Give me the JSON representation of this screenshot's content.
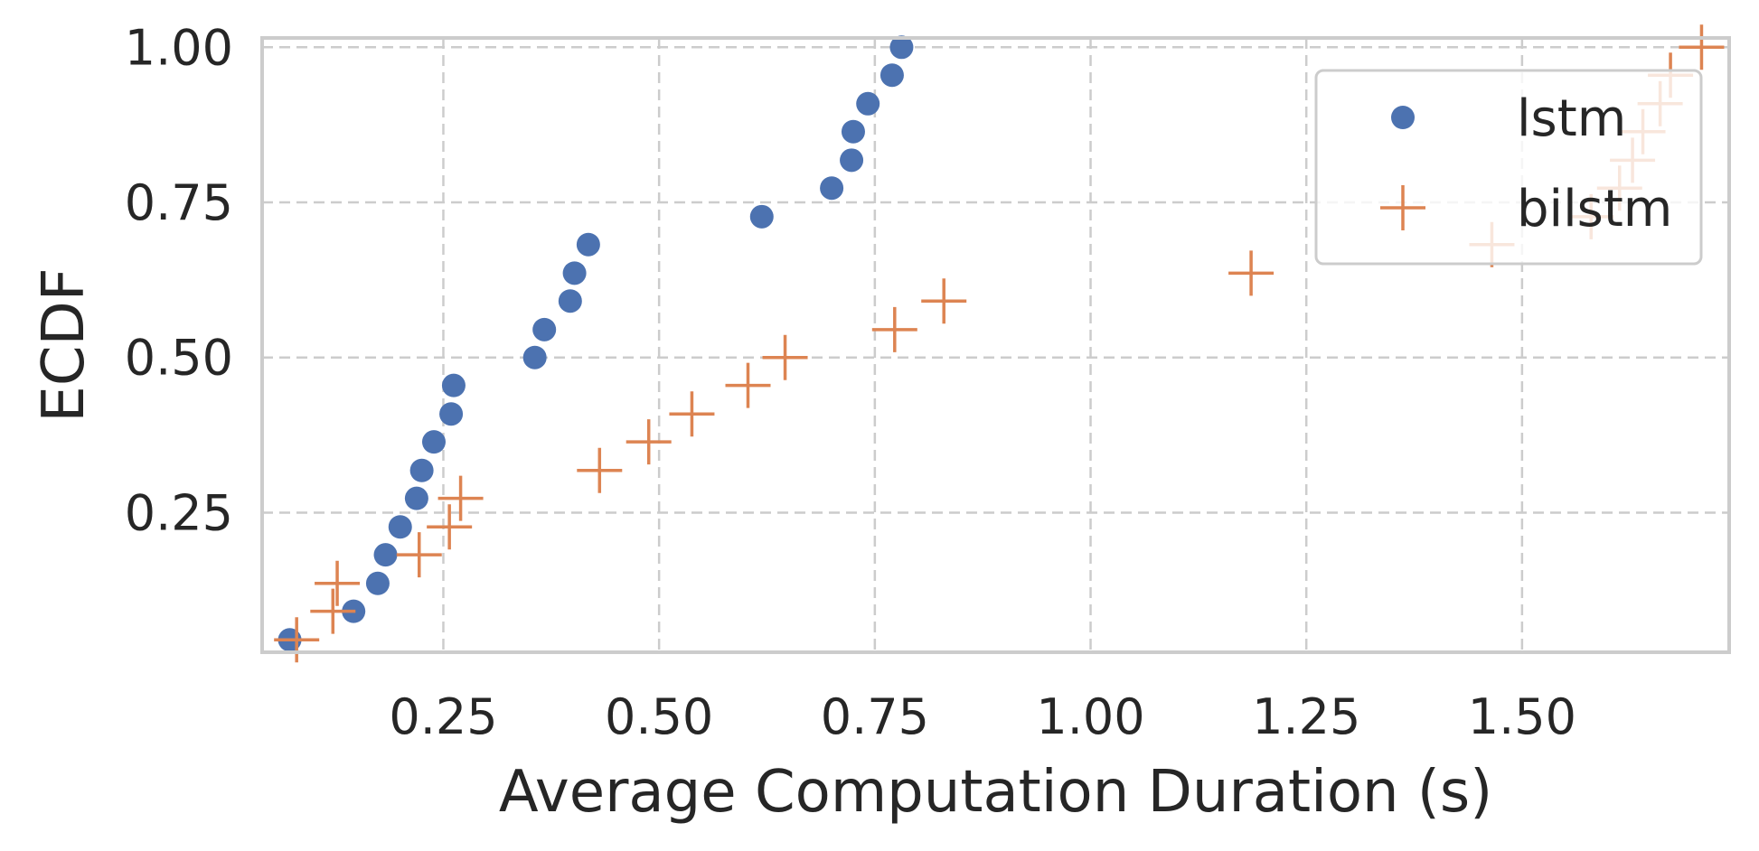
{
  "chart_data": {
    "type": "scatter",
    "title": "",
    "xlabel": "Average Computation Duration (s)",
    "ylabel": "ECDF",
    "xlim": [
      0.04,
      1.74
    ],
    "ylim": [
      0.025,
      1.015
    ],
    "xticks": [
      0.25,
      0.5,
      0.75,
      1.0,
      1.25,
      1.5
    ],
    "xtick_labels": [
      "0.25",
      "0.50",
      "0.75",
      "1.00",
      "1.25",
      "1.50"
    ],
    "yticks": [
      0.25,
      0.5,
      0.75,
      1.0
    ],
    "ytick_labels": [
      "0.25",
      "0.50",
      "0.75",
      "1.00"
    ],
    "grid": true,
    "legend_position": "top-right",
    "series": [
      {
        "name": "lstm",
        "marker": "circle",
        "color": "#4c72b0",
        "x": [
          0.072,
          0.146,
          0.174,
          0.183,
          0.2,
          0.219,
          0.225,
          0.239,
          0.259,
          0.262,
          0.356,
          0.367,
          0.397,
          0.402,
          0.418,
          0.619,
          0.7,
          0.723,
          0.725,
          0.742,
          0.77,
          0.781
        ],
        "y": [
          0.045,
          0.091,
          0.136,
          0.182,
          0.227,
          0.273,
          0.318,
          0.364,
          0.409,
          0.455,
          0.5,
          0.545,
          0.591,
          0.636,
          0.682,
          0.727,
          0.773,
          0.818,
          0.864,
          0.909,
          0.955,
          1.0
        ]
      },
      {
        "name": "bilstm",
        "marker": "plus",
        "color": "#dd8452",
        "x": [
          0.08,
          0.122,
          0.127,
          0.222,
          0.257,
          0.27,
          0.431,
          0.488,
          0.538,
          0.603,
          0.646,
          0.773,
          0.83,
          1.186,
          1.465,
          1.58,
          1.613,
          1.628,
          1.64,
          1.66,
          1.672,
          1.708
        ],
        "y": [
          0.045,
          0.091,
          0.136,
          0.182,
          0.227,
          0.273,
          0.318,
          0.364,
          0.409,
          0.455,
          0.5,
          0.545,
          0.591,
          0.636,
          0.682,
          0.727,
          0.773,
          0.818,
          0.864,
          0.909,
          0.955,
          1.0
        ]
      }
    ]
  }
}
